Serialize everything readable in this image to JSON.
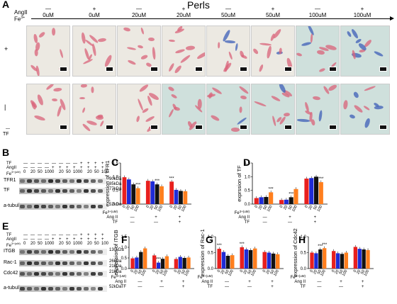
{
  "panelA": {
    "letter": "A",
    "title": "Perls",
    "angII_label": "AngII",
    "fe_label": "Fe",
    "fe_sup": "3+",
    "row_plus": "+",
    "row_minus": "|",
    "tf_label": "TF",
    "dash_label": "—",
    "columns": [
      {
        "angii": "—",
        "fe": "0uM"
      },
      {
        "angii": "+",
        "fe": "0uM"
      },
      {
        "angii": "—",
        "fe": "20uM"
      },
      {
        "angii": "+",
        "fe": "20uM"
      },
      {
        "angii": "—",
        "fe": "50uM"
      },
      {
        "angii": "+",
        "fe": "50uM"
      },
      {
        "angii": "—",
        "fe": "100uM"
      },
      {
        "angii": "+",
        "fe": "100uM"
      }
    ]
  },
  "panelB": {
    "letter": "B",
    "tf_row": "TF",
    "angii_row": "AngII",
    "fe_row": "Fe",
    "fe_unit": "3+(uM)",
    "tf_signs": [
      "—",
      "—",
      "—",
      "—",
      "—",
      "—",
      "—",
      "—",
      "+",
      "+",
      "+",
      "+"
    ],
    "angii_signs": [
      "—",
      "—",
      "—",
      "—",
      "+",
      "+",
      "+",
      "+",
      "+",
      "+",
      "+",
      "+"
    ],
    "fe_values": [
      "0",
      "20",
      "50",
      "100",
      "0",
      "20",
      "50",
      "100",
      "0",
      "20",
      "50",
      "100"
    ],
    "bands": [
      {
        "name": "TFR1",
        "kda": "90kDa",
        "kda2": "85kDa"
      },
      {
        "name": "TF",
        "kda": "77kDa",
        "kda2": ""
      },
      {
        "name": "a-tubulin",
        "kda": "52kDa",
        "kda2": ""
      }
    ]
  },
  "panelE": {
    "letter": "E",
    "tf_row": "TF",
    "angii_row": "AngII",
    "fe_row": "Fe",
    "fe_unit": "3+(uM)",
    "tf_signs": [
      "—",
      "—",
      "—",
      "—",
      "—",
      "—",
      "—",
      "—",
      "+",
      "+",
      "+",
      "+"
    ],
    "angii_signs": [
      "—",
      "—",
      "—",
      "—",
      "+",
      "+",
      "+",
      "+",
      "+",
      "+",
      "+",
      "+"
    ],
    "fe_values": [
      "0",
      "20",
      "50",
      "100",
      "0",
      "20",
      "50",
      "100",
      "0",
      "20",
      "50",
      "100"
    ],
    "bands": [
      {
        "name": "ITGB",
        "kda": "130kDa",
        "kda2": ""
      },
      {
        "name": "Rac-1",
        "kda": "26kDa",
        "kda2": "21kDa"
      },
      {
        "name": "Cdc42",
        "kda": "21kDa",
        "kda2": ""
      },
      {
        "name": "a-tubulin",
        "kda": "52kDa",
        "kda2": ""
      }
    ]
  },
  "colors": {
    "series": [
      "#e8201e",
      "#1f2bd6",
      "#111111",
      "#ff7f1e"
    ],
    "tile_normal": "#ece9e2",
    "tile_teal": "#cfe0dc",
    "cell_red": "#d9637a",
    "cell_blue": "#3e5fb8"
  },
  "x_group_labels": {
    "fe": "Fe",
    "fe_unit": "3+(uM)",
    "angii": "Ang II",
    "tf": "TF",
    "angii_signs": [
      "—",
      "+",
      "+"
    ],
    "tf_signs": [
      "—",
      "—",
      "+"
    ],
    "ticks": [
      "0",
      "20",
      "50",
      "100"
    ]
  },
  "chart_data": [
    {
      "panel": "C",
      "type": "bar",
      "ylabel": "expression of TFR1",
      "ylim": [
        0,
        1.5
      ],
      "yticks": [
        "0.0",
        "0.5",
        "1.0",
        "1.5"
      ],
      "groups": [
        [
          0.98,
          0.9,
          0.72,
          0.58
        ],
        [
          0.85,
          0.83,
          0.72,
          0.65
        ],
        [
          0.82,
          0.52,
          0.48,
          0.47
        ]
      ],
      "stars": [
        "",
        "",
        "",
        "***",
        "",
        "",
        "***",
        "",
        "***",
        "",
        "",
        ""
      ]
    },
    {
      "panel": "D",
      "type": "bar",
      "ylabel": "exprssion of TF",
      "ylim": [
        0,
        1.5
      ],
      "yticks": [
        "0.0",
        "0.5",
        "1.0",
        "1.5"
      ],
      "groups": [
        [
          0.22,
          0.25,
          0.26,
          0.43
        ],
        [
          0.15,
          0.16,
          0.25,
          0.55
        ],
        [
          0.93,
          0.95,
          1.0,
          0.8
        ]
      ],
      "stars": [
        "",
        "",
        "",
        "***",
        "",
        "",
        "***",
        "",
        "",
        "",
        "",
        "***"
      ]
    },
    {
      "panel": "F",
      "type": "bar",
      "ylabel": "expression of ITGB",
      "ylim": [
        0,
        1.5
      ],
      "yticks": [
        "0.0",
        "0.5",
        "1.0",
        "1.5"
      ],
      "groups": [
        [
          0.48,
          0.52,
          0.78,
          0.95
        ],
        [
          0.62,
          0.28,
          0.46,
          0.58
        ],
        [
          0.45,
          0.55,
          0.5,
          0.52
        ]
      ],
      "stars": [
        "",
        "",
        "",
        "",
        "",
        "***",
        "",
        "",
        "",
        "",
        "",
        ""
      ]
    },
    {
      "panel": "G",
      "type": "bar",
      "ylabel": "expression of Rac-1",
      "ylim": [
        0,
        1.0
      ],
      "yticks": [
        "0.0",
        "0.5",
        "1.0"
      ],
      "groups": [
        [
          0.62,
          0.52,
          0.4,
          0.42
        ],
        [
          0.67,
          0.6,
          0.58,
          0.63
        ],
        [
          0.52,
          0.5,
          0.47,
          0.45
        ]
      ],
      "stars": [
        "***",
        "",
        "",
        "",
        "***",
        "",
        "",
        "",
        "",
        "",
        "",
        ""
      ]
    },
    {
      "panel": "H",
      "type": "bar",
      "ylabel": "expression of Cdc42",
      "ylim": [
        0,
        1.0
      ],
      "yticks": [
        "0.0",
        "0.5",
        "1.0"
      ],
      "groups": [
        [
          0.5,
          0.48,
          0.6,
          0.64
        ],
        [
          0.55,
          0.48,
          0.46,
          0.5
        ],
        [
          0.68,
          0.62,
          0.6,
          0.58
        ]
      ],
      "stars": [
        "",
        "",
        "***",
        "***",
        "",
        "",
        "",
        "",
        "",
        "",
        "",
        ""
      ]
    }
  ]
}
